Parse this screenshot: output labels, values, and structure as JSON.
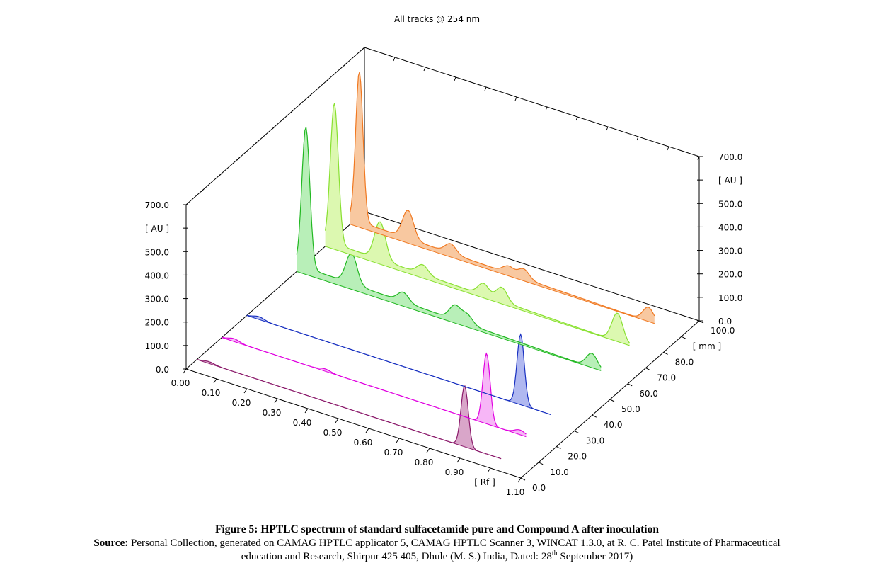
{
  "chart_data": {
    "type": "area",
    "title": "All tracks @ 254 nm",
    "y_axis": {
      "label": "[ AU ]",
      "ticks": [
        "700.0",
        "500.0",
        "400.0",
        "300.0",
        "200.0",
        "100.0",
        "0.0"
      ],
      "ylim": [
        0,
        700
      ]
    },
    "x_axis": {
      "label": "[ Rf ]",
      "ticks": [
        "0.00",
        "0.10",
        "0.20",
        "0.30",
        "0.40",
        "0.50",
        "0.60",
        "0.70",
        "0.80",
        "0.90",
        "1.10"
      ],
      "xlim": [
        0,
        1.1
      ]
    },
    "z_axis": {
      "label": "[ mm ]",
      "ticks": [
        "0.0",
        "10.0",
        "20.0",
        "30.0",
        "40.0",
        "50.0",
        "60.0",
        "70.0",
        "80.0",
        "100.0"
      ],
      "zlim": [
        0,
        100
      ]
    },
    "right_y_axis": {
      "label": "[ AU ]",
      "ticks": [
        "700.0",
        "500.0",
        "400.0",
        "300.0",
        "200.0",
        "100.0",
        "0.0"
      ]
    },
    "series": [
      {
        "color": "#8b1a6b",
        "fill": "#d9a6c9",
        "base": 0,
        "peaks": [
          [
            0.04,
            8
          ],
          [
            0.88,
            260
          ]
        ]
      },
      {
        "color": "#e000e0",
        "fill": "#f7b6f7",
        "base": 0,
        "peaks": [
          [
            0.04,
            12
          ],
          [
            0.34,
            10
          ],
          [
            0.87,
            300
          ],
          [
            0.98,
            20
          ]
        ]
      },
      {
        "color": "#1830c0",
        "fill": "#b0b8f0",
        "base": 0,
        "peaks": [
          [
            0.04,
            12
          ],
          [
            0.9,
            300
          ]
        ]
      },
      {
        "color": "#22b822",
        "fill": "#b8efb8",
        "base": 30,
        "peaks": [
          [
            0.03,
            600
          ],
          [
            0.18,
            130
          ],
          [
            0.35,
            40
          ],
          [
            0.52,
            60
          ],
          [
            0.56,
            40
          ],
          [
            0.97,
            60
          ]
        ]
      },
      {
        "color": "#88e030",
        "fill": "#dcf8b0",
        "base": 25,
        "peaks": [
          [
            0.03,
            600
          ],
          [
            0.18,
            160
          ],
          [
            0.32,
            40
          ],
          [
            0.52,
            50
          ],
          [
            0.58,
            60
          ],
          [
            0.96,
            120
          ]
        ]
      },
      {
        "color": "#f07820",
        "fill": "#f8c8a0",
        "base": 25,
        "peaks": [
          [
            0.03,
            640
          ],
          [
            0.19,
            120
          ],
          [
            0.33,
            40
          ],
          [
            0.52,
            30
          ],
          [
            0.57,
            40
          ],
          [
            0.98,
            60
          ]
        ]
      }
    ]
  },
  "caption": {
    "title": "Figure 5: HPTLC spectrum of standard sulfacetamide pure and Compound A after inoculation",
    "source_label": "Source:",
    "source_text_1": " Personal Collection, generated on CAMAG HPTLC applicator 5, CAMAG HPTLC Scanner 3, WINCAT 1.3.0, at R. C. Patel Institute of Pharmaceutical",
    "source_text_2a": "education and Research, Shirpur 425 405, Dhule (M. S.) India, Dated: 28",
    "source_sup": "th",
    "source_text_2b": " September 2017)"
  }
}
